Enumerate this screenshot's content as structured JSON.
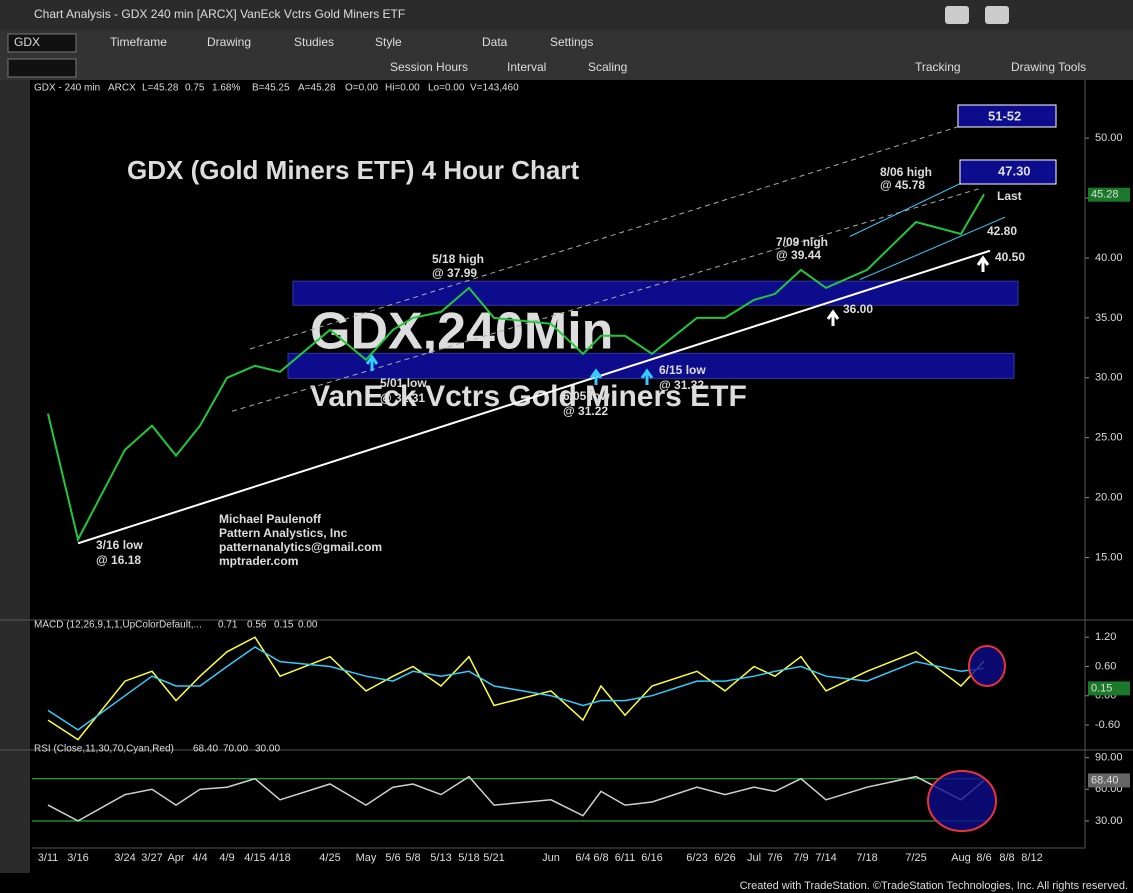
{
  "window": {
    "title": "Chart Analysis - GDX 240 min [ARCX] VanEck Vctrs Gold Miners ETF",
    "symbol": "GDX",
    "menu": [
      "Timeframe",
      "Drawing",
      "Studies",
      "Style",
      "Data",
      "Settings"
    ],
    "tools": [
      "Session Hours",
      "Interval",
      "Scaling",
      "Tracking",
      "Drawing Tools"
    ],
    "header": [
      "GDX - 240 min",
      "ARCX",
      "L=45.28",
      "0.75",
      "1.68%",
      "B=45.25",
      "A=45.28",
      "O=0.00",
      "Hi=0.00",
      "Lo=0.00",
      "V=143,460"
    ],
    "watermark": [
      "GDX,240Min",
      "VanEck Vctrs Gold Miners ETF"
    ],
    "footer": "Created with TradeStation. ©TradeStation Technologies, Inc. All rights reserved."
  },
  "chart_data": [
    {
      "type": "line",
      "title": "GDX (Gold Miners ETF) 4 Hour Chart",
      "categories": [
        "3/11",
        "3/16",
        "3/24",
        "3/27",
        "Apr",
        "4/4",
        "4/9",
        "4/15",
        "4/18",
        "4/25",
        "May",
        "5/6",
        "5/8",
        "5/13",
        "5/18",
        "5/21",
        "Jun",
        "6/4",
        "6/8",
        "6/11",
        "6/16",
        "6/23",
        "6/26",
        "Jul",
        "7/6",
        "7/9",
        "7/14",
        "7/18",
        "7/25",
        "Aug",
        "8/6",
        "8/8",
        "8/12"
      ],
      "series": [
        {
          "name": "GDX",
          "color": "#22c83a",
          "values": [
            27,
            16.5,
            24,
            26,
            23.5,
            26,
            30,
            31,
            30.5,
            34,
            31.5,
            34,
            35,
            35.5,
            37.5,
            35,
            34.5,
            32,
            33.5,
            33.5,
            32,
            35,
            35,
            36.5,
            37,
            39,
            37.5,
            39,
            43,
            42,
            45.3,
            null,
            null
          ]
        }
      ],
      "ylim": [
        10.2,
        53.6
      ],
      "yticks": [
        {
          "value": 15,
          "label": "15.00"
        },
        {
          "value": 20,
          "label": "20.00"
        },
        {
          "value": 25,
          "label": "25.00"
        },
        {
          "value": 30,
          "label": "30.00"
        },
        {
          "value": 35,
          "label": "35.00"
        },
        {
          "value": 40,
          "label": "40.00"
        },
        {
          "value": 45,
          "label": "45.00"
        },
        {
          "value": 50,
          "label": "50.00"
        }
      ],
      "last": {
        "value": 45.28,
        "label": "45.28"
      },
      "zones": [
        {
          "low": 36.05,
          "high": 38.06
        },
        {
          "low": 29.95,
          "high": 32.04
        }
      ],
      "targets": [
        "51-52",
        "47.30",
        "42.80",
        "40.50",
        "36.00",
        "Last"
      ],
      "annotations": [
        "3/16 low",
        "@ 16.18",
        "5/01 low",
        "@ 31.31",
        "5/18 high",
        "@ 37.99",
        "6/05 low",
        "@ 31.22",
        "6/15 low",
        "@ 31.32",
        "7/09 nigh",
        "@ 39.44",
        "8/06 high",
        "@ 45.78"
      ],
      "credits": [
        "Michael Paulenoff",
        "Pattern Analystics, Inc",
        "patternanalytics@gmail.com",
        "mptrader.com"
      ]
    },
    {
      "type": "line",
      "legend": [
        "MACD (12,26,9,1,1,UpColorDefault,...",
        "0.71",
        "0.56",
        "0.15",
        "0.00"
      ],
      "series": [
        {
          "name": "MACD",
          "color": "#ffff33",
          "values": [
            -0.5,
            -0.9,
            0.3,
            0.5,
            -0.1,
            0.4,
            0.9,
            1.2,
            0.4,
            0.8,
            0.1,
            0.4,
            0.6,
            0.2,
            0.8,
            -0.2,
            0.1,
            -0.5,
            0.2,
            -0.4,
            0.2,
            0.5,
            0.1,
            0.6,
            0.4,
            0.8,
            0.1,
            0.5,
            0.9,
            0.2,
            0.71,
            null,
            null
          ]
        },
        {
          "name": "Signal",
          "color": "#33ccff",
          "values": [
            -0.3,
            -0.7,
            0,
            0.4,
            0.2,
            0.2,
            0.6,
            1,
            0.7,
            0.6,
            0.4,
            0.3,
            0.5,
            0.4,
            0.5,
            0.2,
            0,
            -0.2,
            -0.1,
            -0.1,
            0,
            0.3,
            0.3,
            0.4,
            0.5,
            0.6,
            0.4,
            0.3,
            0.7,
            0.5,
            0.56,
            null,
            null
          ]
        }
      ],
      "ylim": [
        -1.01,
        1.45
      ],
      "yticks": [
        {
          "value": 1.2,
          "label": "1.20"
        },
        {
          "value": 0.6,
          "label": "0.60"
        },
        {
          "value": 0,
          "label": "0.00"
        },
        {
          "value": -0.6,
          "label": "-0.60"
        }
      ],
      "last": {
        "value": 0.15,
        "label": "0.15"
      }
    },
    {
      "type": "line",
      "legend": [
        "RSI (Close,11,30,70,Cyan,Red)",
        "68.40",
        "70.00",
        "30.00"
      ],
      "series": [
        {
          "name": "RSI",
          "color": "#d0d0d0",
          "values": [
            45,
            30,
            55,
            60,
            45,
            60,
            62,
            70,
            50,
            65,
            45,
            62,
            65,
            55,
            72,
            45,
            50,
            35,
            58,
            45,
            48,
            62,
            55,
            62,
            58,
            70,
            50,
            62,
            72,
            50,
            68.4,
            null,
            null
          ]
        }
      ],
      "levels": [
        70,
        30
      ],
      "ylim": [
        7.2,
        92.5
      ],
      "yticks": [
        {
          "value": 90,
          "label": "90.00"
        },
        {
          "value": 60,
          "label": "60.00"
        },
        {
          "value": 30,
          "label": "30.00"
        }
      ],
      "last": {
        "value": 68.4,
        "label": "68.40"
      }
    }
  ]
}
